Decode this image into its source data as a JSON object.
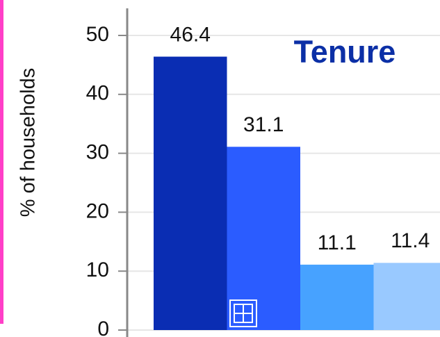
{
  "chart_data": {
    "type": "bar",
    "title": "Tenure",
    "y_label": "% of households",
    "categories": [
      null,
      null,
      null,
      null
    ],
    "values": [
      46.4,
      31.1,
      11.1,
      11.4
    ],
    "colors": [
      "#0a2db3",
      "#2b5cff",
      "#47a2ff",
      "#99c9ff"
    ],
    "ylim": [
      0,
      50
    ],
    "yticks": [
      0,
      10,
      20,
      30,
      40,
      50
    ],
    "grid": true
  }
}
